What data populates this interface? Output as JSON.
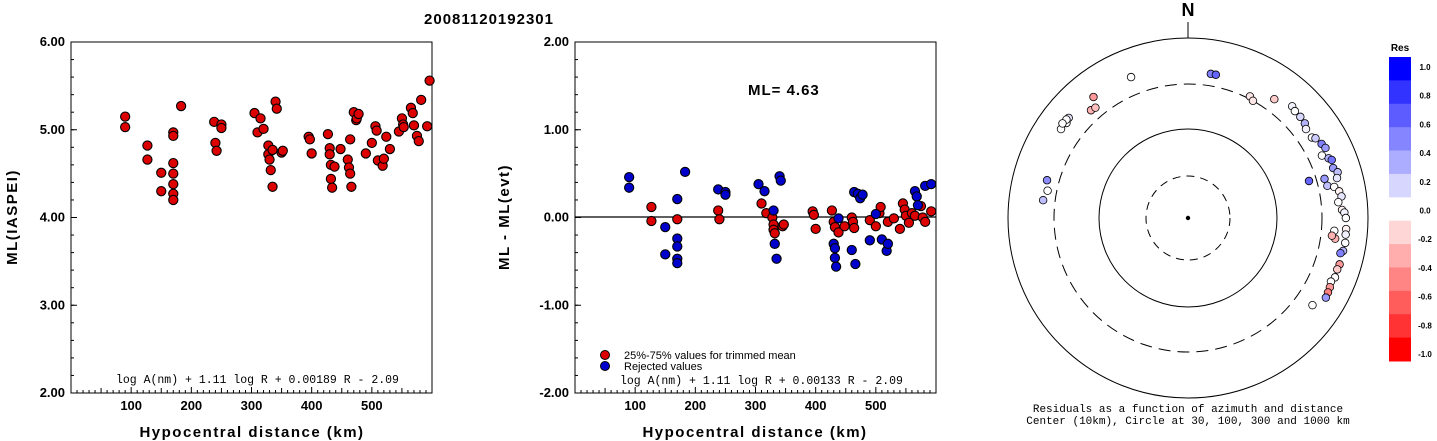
{
  "title": "20081120192301",
  "chart_data": [
    {
      "type": "scatter",
      "ylabel": "ML(IASPEI)",
      "xlabel": "Hypocentral distance (km)",
      "xlim": [
        0,
        600
      ],
      "ylim": [
        2,
        6
      ],
      "x_ticks": [
        "100",
        "200",
        "300",
        "400",
        "500"
      ],
      "y_ticks": [
        "2.00",
        "3.00",
        "4.00",
        "5.00",
        "6.00"
      ],
      "formula": "log A(nm) + 1.11 log R + 0.00189 R - 2.09",
      "color": "#dd0000",
      "points": [
        [
          90,
          5.15
        ],
        [
          90,
          5.03
        ],
        [
          127,
          4.82
        ],
        [
          127,
          4.66
        ],
        [
          150,
          4.51
        ],
        [
          150,
          4.3
        ],
        [
          170,
          4.97
        ],
        [
          170,
          4.93
        ],
        [
          170,
          4.62
        ],
        [
          170,
          4.5
        ],
        [
          170,
          4.38
        ],
        [
          170,
          4.27
        ],
        [
          170,
          4.2
        ],
        [
          183,
          5.27
        ],
        [
          238,
          5.09
        ],
        [
          240,
          4.85
        ],
        [
          242,
          4.76
        ],
        [
          250,
          5.06
        ],
        [
          250,
          5.02
        ],
        [
          305,
          5.19
        ],
        [
          310,
          4.97
        ],
        [
          315,
          5.13
        ],
        [
          320,
          5.01
        ],
        [
          328,
          4.82
        ],
        [
          328,
          4.72
        ],
        [
          330,
          4.66
        ],
        [
          332,
          4.54
        ],
        [
          335,
          4.35
        ],
        [
          335,
          4.77
        ],
        [
          340,
          5.32
        ],
        [
          342,
          5.24
        ],
        [
          350,
          4.74
        ],
        [
          352,
          4.76
        ],
        [
          395,
          4.92
        ],
        [
          397,
          4.89
        ],
        [
          400,
          4.73
        ],
        [
          427,
          4.95
        ],
        [
          430,
          4.79
        ],
        [
          430,
          4.72
        ],
        [
          432,
          4.6
        ],
        [
          432,
          4.44
        ],
        [
          434,
          4.34
        ],
        [
          438,
          4.58
        ],
        [
          448,
          4.78
        ],
        [
          460,
          4.66
        ],
        [
          462,
          4.57
        ],
        [
          464,
          4.5
        ],
        [
          466,
          4.35
        ],
        [
          464,
          4.89
        ],
        [
          470,
          5.2
        ],
        [
          474,
          5.11
        ],
        [
          475,
          5.13
        ],
        [
          478,
          5.18
        ],
        [
          490,
          4.73
        ],
        [
          500,
          4.85
        ],
        [
          506,
          5.04
        ],
        [
          508,
          4.99
        ],
        [
          510,
          4.65
        ],
        [
          518,
          4.59
        ],
        [
          520,
          4.67
        ],
        [
          524,
          4.92
        ],
        [
          530,
          4.78
        ],
        [
          545,
          4.98
        ],
        [
          550,
          5.13
        ],
        [
          552,
          5.06
        ],
        [
          553,
          5.03
        ],
        [
          565,
          5.25
        ],
        [
          568,
          5.19
        ],
        [
          570,
          5.05
        ],
        [
          575,
          4.93
        ],
        [
          578,
          4.87
        ],
        [
          582,
          5.34
        ],
        [
          592,
          5.04
        ],
        [
          596,
          5.56
        ]
      ]
    },
    {
      "type": "scatter",
      "ylabel": "ML - ML(evt)",
      "xlabel": "Hypocentral distance (km)",
      "xlim": [
        0,
        600
      ],
      "ylim": [
        -2,
        2
      ],
      "x_ticks": [
        "100",
        "200",
        "300",
        "400",
        "500"
      ],
      "y_ticks": [
        "-2.00",
        "-1.00",
        "0.00",
        "1.00",
        "2.00"
      ],
      "annotation": "ML= 4.63",
      "formula": "log A(nm) + 1.11 log R + 0.00133 R - 2.09",
      "legend": [
        "25%-75% values for trimmed mean",
        "Rejected values"
      ],
      "series": [
        {
          "name": "25%-75% values for trimmed mean",
          "color": "#dd0000",
          "points": [
            [
              127,
              0.12
            ],
            [
              127,
              -0.04
            ],
            [
              170,
              -0.02
            ],
            [
              238,
              0.08
            ],
            [
              240,
              -0.02
            ],
            [
              310,
              0.16
            ],
            [
              318,
              0.05
            ],
            [
              328,
              0.0
            ],
            [
              330,
              -0.08
            ],
            [
              330,
              -0.14
            ],
            [
              332,
              -0.18
            ],
            [
              345,
              -0.1
            ],
            [
              347,
              -0.08
            ],
            [
              395,
              0.07
            ],
            [
              397,
              0.03
            ],
            [
              400,
              -0.13
            ],
            [
              427,
              0.08
            ],
            [
              430,
              -0.05
            ],
            [
              432,
              -0.11
            ],
            [
              438,
              -0.17
            ],
            [
              448,
              -0.1
            ],
            [
              460,
              0.0
            ],
            [
              462,
              -0.05
            ],
            [
              464,
              -0.12
            ],
            [
              490,
              -0.03
            ],
            [
              500,
              -0.1
            ],
            [
              506,
              0.05
            ],
            [
              508,
              0.12
            ],
            [
              520,
              -0.05
            ],
            [
              530,
              -0.01
            ],
            [
              540,
              -0.13
            ],
            [
              545,
              0.16
            ],
            [
              548,
              0.09
            ],
            [
              550,
              0.02
            ],
            [
              555,
              -0.06
            ],
            [
              560,
              0.05
            ],
            [
              565,
              0.02
            ],
            [
              575,
              0.13
            ],
            [
              578,
              0.0
            ],
            [
              582,
              -0.05
            ],
            [
              592,
              0.07
            ]
          ]
        },
        {
          "name": "Rejected values",
          "color": "#0000cc",
          "points": [
            [
              90,
              0.46
            ],
            [
              90,
              0.34
            ],
            [
              150,
              -0.11
            ],
            [
              150,
              -0.42
            ],
            [
              170,
              0.21
            ],
            [
              170,
              -0.24
            ],
            [
              170,
              -0.33
            ],
            [
              170,
              -0.47
            ],
            [
              170,
              -0.52
            ],
            [
              183,
              0.52
            ],
            [
              238,
              0.32
            ],
            [
              250,
              0.29
            ],
            [
              250,
              0.26
            ],
            [
              305,
              0.38
            ],
            [
              315,
              0.3
            ],
            [
              330,
              0.08
            ],
            [
              332,
              -0.3
            ],
            [
              335,
              -0.47
            ],
            [
              340,
              0.47
            ],
            [
              342,
              0.42
            ],
            [
              430,
              -0.3
            ],
            [
              432,
              -0.35
            ],
            [
              432,
              -0.46
            ],
            [
              434,
              -0.56
            ],
            [
              438,
              -0.01
            ],
            [
              460,
              -0.37
            ],
            [
              466,
              -0.53
            ],
            [
              464,
              0.29
            ],
            [
              470,
              0.27
            ],
            [
              474,
              0.22
            ],
            [
              478,
              0.26
            ],
            [
              490,
              -0.26
            ],
            [
              500,
              0.04
            ],
            [
              510,
              -0.25
            ],
            [
              518,
              -0.38
            ],
            [
              520,
              -0.3
            ],
            [
              565,
              0.3
            ],
            [
              568,
              0.24
            ],
            [
              570,
              0.14
            ],
            [
              582,
              0.36
            ],
            [
              592,
              0.38
            ]
          ]
        }
      ]
    },
    {
      "type": "polar",
      "north_label": "N",
      "caption_line1": "Residuals as a function of azimuth and distance",
      "caption_line2": "Center (10km), Circle at 30, 100, 300 and 1000 km",
      "colorbar_title": "Res",
      "colorbar_ticks": [
        "1.0",
        "0.8",
        "0.6",
        "0.4",
        "0.2",
        "0.0",
        "-0.2",
        "-0.4",
        "-0.6",
        "-0.8",
        "-1.0"
      ],
      "colorbar_colors": [
        "#0000ff",
        "#3333ff",
        "#5c5cff",
        "#8585ff",
        "#adadff",
        "#d6d6ff",
        "#ffffff",
        "#ffd6d6",
        "#ffadad",
        "#ff8585",
        "#ff5c5c",
        "#ff3333",
        "#ff0000"
      ],
      "stations": [
        {
          "az": 9,
          "dist": 410,
          "res": 0.5
        },
        {
          "az": 11,
          "dist": 410,
          "res": 0.6
        },
        {
          "az": 36,
          "dist": 420,
          "res": -0.2
        },
        {
          "az": 27,
          "dist": 320,
          "res": -0.1
        },
        {
          "az": 29,
          "dist": 300,
          "res": -0.1
        },
        {
          "az": 43,
          "dist": 490,
          "res": 0.05
        },
        {
          "az": 45,
          "dist": 470,
          "res": 0.0
        },
        {
          "az": 48,
          "dist": 470,
          "res": 0.15
        },
        {
          "az": 51,
          "dist": 460,
          "res": 0.3
        },
        {
          "az": 53,
          "dist": 430,
          "res": 0.05
        },
        {
          "az": 57,
          "dist": 430,
          "res": 0.0
        },
        {
          "az": 58,
          "dist": 460,
          "res": 0.2
        },
        {
          "az": 61,
          "dist": 490,
          "res": 0.5
        },
        {
          "az": 63,
          "dist": 510,
          "res": 0.4
        },
        {
          "az": 65,
          "dist": 430,
          "res": 0.0
        },
        {
          "az": 67,
          "dist": 490,
          "res": 0.3
        },
        {
          "az": 68,
          "dist": 520,
          "res": 0.55
        },
        {
          "az": 71,
          "dist": 500,
          "res": 0.4
        },
        {
          "az": 73,
          "dist": 540,
          "res": 0.25
        },
        {
          "az": 75,
          "dist": 510,
          "res": 0.1
        },
        {
          "az": 74,
          "dist": 370,
          "res": 0.4
        },
        {
          "az": 73,
          "dist": 250,
          "res": 0.6
        },
        {
          "az": 77,
          "dist": 380,
          "res": 0.25
        },
        {
          "az": 78,
          "dist": 450,
          "res": 0.0
        },
        {
          "az": 80,
          "dist": 500,
          "res": -0.05
        },
        {
          "az": 82,
          "dist": 520,
          "res": 0.1
        },
        {
          "az": 84,
          "dist": 470,
          "res": 0.0
        },
        {
          "az": 87,
          "dist": 510,
          "res": -0.05
        },
        {
          "az": 88,
          "dist": 540,
          "res": 0.05
        },
        {
          "az": 90,
          "dist": 560,
          "res": 0.0
        },
        {
          "az": 94,
          "dist": 570,
          "res": -0.05
        },
        {
          "az": 96,
          "dist": 570,
          "res": 0.05
        },
        {
          "az": 99,
          "dist": 580,
          "res": 0.0
        },
        {
          "az": 102,
          "dist": 570,
          "res": 0.3
        },
        {
          "az": 103,
          "dist": 540,
          "res": 0.5
        },
        {
          "az": 98,
          "dist": 440,
          "res": -0.3
        },
        {
          "az": 95,
          "dist": 420,
          "res": 0.0
        },
        {
          "az": 97,
          "dist": 400,
          "res": -0.3
        },
        {
          "az": 107,
          "dist": 570,
          "res": -0.4
        },
        {
          "az": 109,
          "dist": 560,
          "res": -0.2
        },
        {
          "az": 112,
          "dist": 570,
          "res": 0.0
        },
        {
          "az": 114,
          "dist": 540,
          "res": 0.0
        },
        {
          "az": 116,
          "dist": 560,
          "res": -0.4
        },
        {
          "az": 118,
          "dist": 570,
          "res": -0.5
        },
        {
          "az": 120,
          "dist": 580,
          "res": 0.4
        },
        {
          "az": 125,
          "dist": 480,
          "res": 0.0
        },
        {
          "az": 277,
          "dist": 410,
          "res": 0.25
        },
        {
          "az": 281,
          "dist": 380,
          "res": 0.0
        },
        {
          "az": 285,
          "dist": 410,
          "res": 0.45
        },
        {
          "az": 305,
          "dist": 520,
          "res": 0.0
        },
        {
          "az": 308,
          "dist": 510,
          "res": 0.0
        },
        {
          "az": 310,
          "dist": 530,
          "res": 0.1
        },
        {
          "az": 309,
          "dist": 540,
          "res": 0.0
        },
        {
          "az": 307,
          "dist": 550,
          "res": 0.0
        },
        {
          "az": 318,
          "dist": 400,
          "res": -0.3
        },
        {
          "az": 320,
          "dist": 390,
          "res": -0.25
        },
        {
          "az": 322,
          "dist": 500,
          "res": -0.4
        },
        {
          "az": 338,
          "dist": 480,
          "res": 0.0
        }
      ]
    }
  ]
}
